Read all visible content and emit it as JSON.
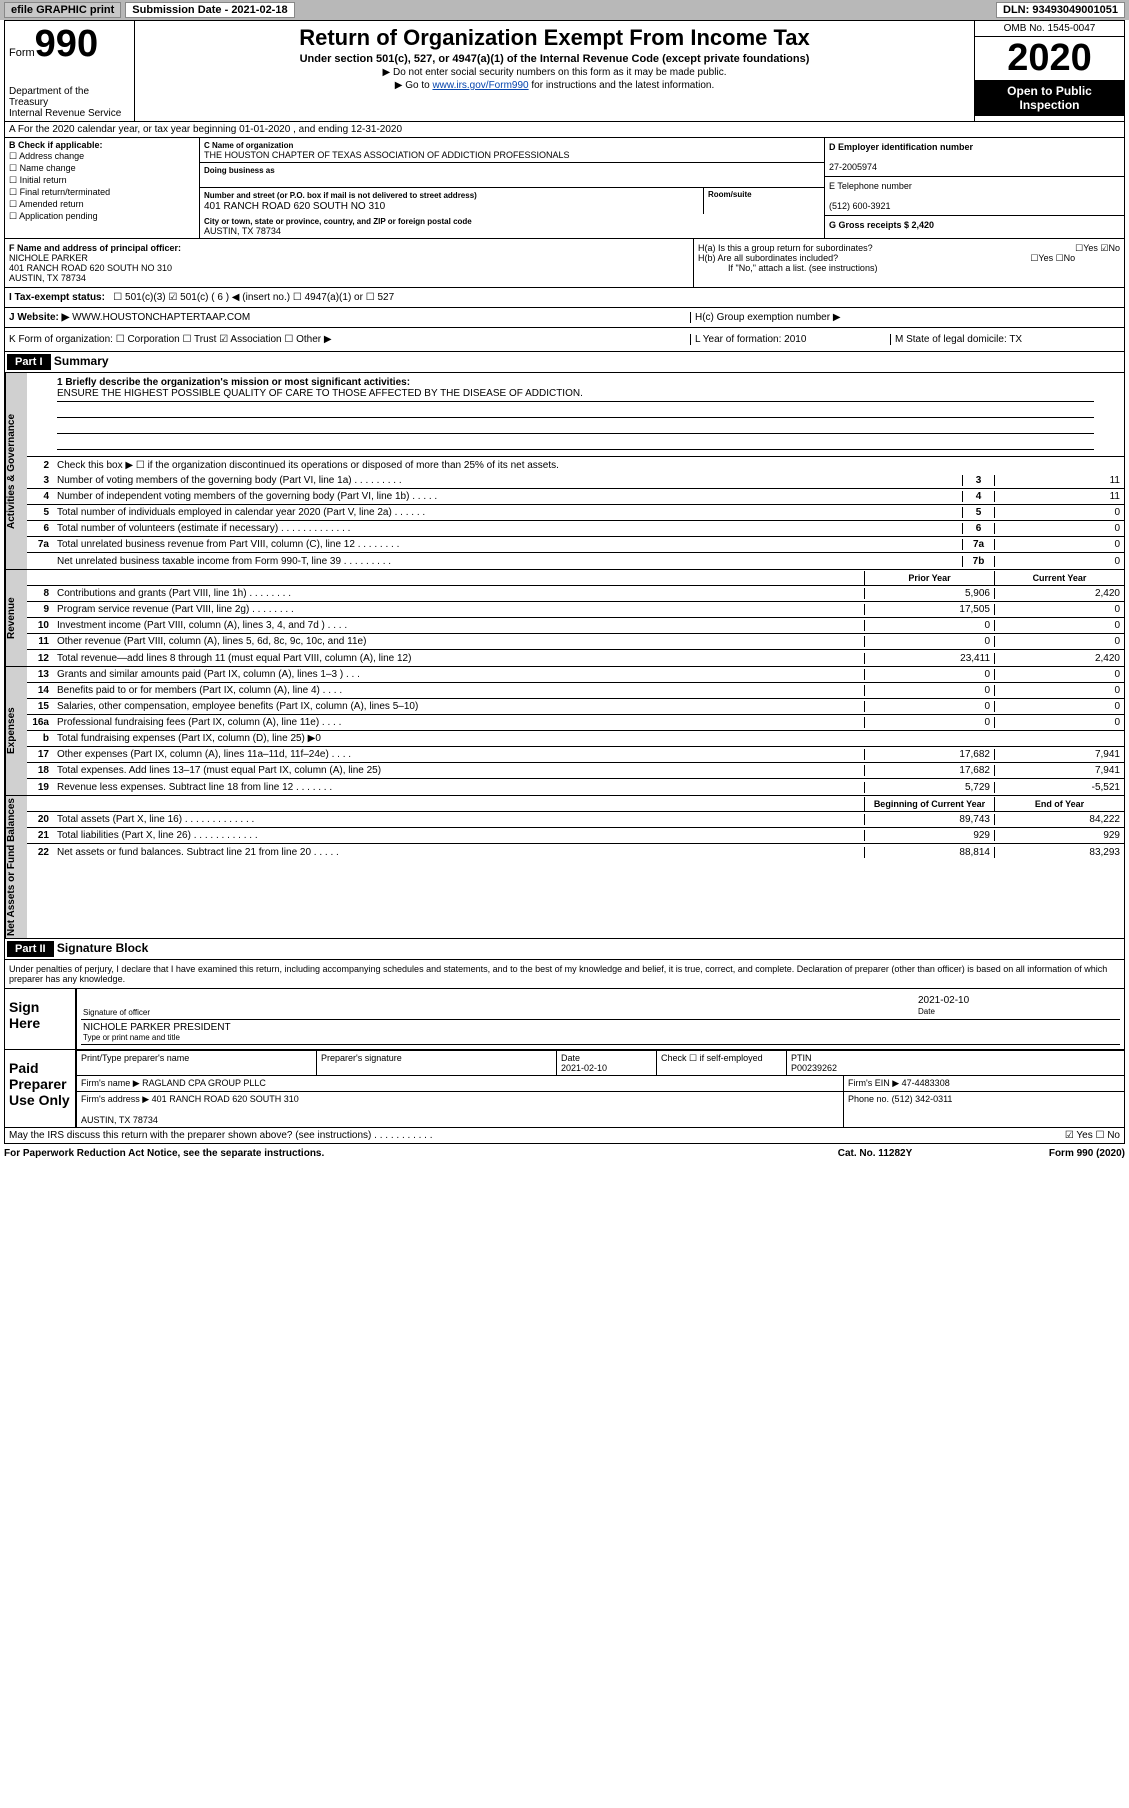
{
  "topbar": {
    "efile": "efile GRAPHIC print",
    "submission_label": "Submission Date - 2021-02-18",
    "dln": "DLN: 93493049001051"
  },
  "header": {
    "form_prefix": "Form",
    "form_number": "990",
    "dept": "Department of the Treasury",
    "irs": "Internal Revenue Service",
    "title": "Return of Organization Exempt From Income Tax",
    "subtitle": "Under section 501(c), 527, or 4947(a)(1) of the Internal Revenue Code (except private foundations)",
    "note1": "▶ Do not enter social security numbers on this form as it may be made public.",
    "note2_pre": "▶ Go to ",
    "note2_link": "www.irs.gov/Form990",
    "note2_post": " for instructions and the latest information.",
    "omb": "OMB No. 1545-0047",
    "year": "2020",
    "open": "Open to Public Inspection"
  },
  "period": "A For the 2020 calendar year, or tax year beginning 01-01-2020    , and ending 12-31-2020",
  "checkB": {
    "title": "B Check if applicable:",
    "items": [
      "Address change",
      "Name change",
      "Initial return",
      "Final return/terminated",
      "Amended return",
      "Application pending"
    ]
  },
  "orgC": {
    "name_lbl": "C Name of organization",
    "name": "THE HOUSTON CHAPTER OF TEXAS ASSOCIATION OF ADDICTION PROFESSIONALS",
    "dba_lbl": "Doing business as",
    "street_lbl": "Number and street (or P.O. box if mail is not delivered to street address)",
    "street": "401 RANCH ROAD 620 SOUTH NO 310",
    "room_lbl": "Room/suite",
    "city_lbl": "City or town, state or province, country, and ZIP or foreign postal code",
    "city": "AUSTIN, TX  78734"
  },
  "right": {
    "ein_lbl": "D Employer identification number",
    "ein": "27-2005974",
    "phone_lbl": "E Telephone number",
    "phone": "(512) 600-3921",
    "gross_lbl": "G Gross receipts $ 2,420"
  },
  "F": {
    "lbl": "F Name and address of principal officer:",
    "name": "NICHOLE PARKER",
    "addr1": "401 RANCH ROAD 620 SOUTH NO 310",
    "addr2": "AUSTIN, TX  78734"
  },
  "H": {
    "a": "H(a)  Is this a group return for subordinates?",
    "a_yn": "☐Yes ☑No",
    "b": "H(b)  Are all subordinates included?",
    "b_yn": "☐Yes ☐No",
    "b_note": "If \"No,\" attach a list. (see instructions)",
    "c": "H(c)  Group exemption number ▶"
  },
  "I": {
    "lbl": "I    Tax-exempt status:",
    "opts": "☐ 501(c)(3)   ☑ 501(c) ( 6 ) ◀ (insert no.)   ☐ 4947(a)(1) or  ☐ 527"
  },
  "J": {
    "lbl": "J   Website: ▶",
    "url": " WWW.HOUSTONCHAPTERTAAP.COM"
  },
  "K": {
    "lbl": "K Form of organization:  ☐ Corporation  ☐ Trust  ☑ Association  ☐ Other ▶",
    "L": "L Year of formation: 2010",
    "M": "M State of legal domicile: TX"
  },
  "part1": {
    "hdr": "Part I",
    "title": "Summary"
  },
  "summary": {
    "line1_lbl": "1  Briefly describe the organization's mission or most significant activities:",
    "mission": "ENSURE THE HIGHEST POSSIBLE QUALITY OF CARE TO THOSE AFFECTED BY THE DISEASE OF ADDICTION.",
    "line2": "Check this box ▶ ☐  if the organization discontinued its operations or disposed of more than 25% of its net assets.",
    "governance": [
      {
        "n": "3",
        "d": "Number of voting members of the governing body (Part VI, line 1a)  .  .  .  .  .  .  .  .  .",
        "b": "3",
        "v": "11"
      },
      {
        "n": "4",
        "d": "Number of independent voting members of the governing body (Part VI, line 1b)  .  .  .  .  .",
        "b": "4",
        "v": "11"
      },
      {
        "n": "5",
        "d": "Total number of individuals employed in calendar year 2020 (Part V, line 2a)  .  .  .  .  .  .",
        "b": "5",
        "v": "0"
      },
      {
        "n": "6",
        "d": "Total number of volunteers (estimate if necessary)  .  .  .  .  .  .  .  .  .  .  .  .  .",
        "b": "6",
        "v": "0"
      },
      {
        "n": "7a",
        "d": "Total unrelated business revenue from Part VIII, column (C), line 12  .  .  .  .  .  .  .  .",
        "b": "7a",
        "v": "0"
      },
      {
        "n": "",
        "d": "Net unrelated business taxable income from Form 990-T, line 39  .  .  .  .  .  .  .  .  .",
        "b": "7b",
        "v": "0"
      }
    ],
    "rev_hdr": {
      "c1": "Prior Year",
      "c2": "Current Year"
    },
    "revenue": [
      {
        "n": "8",
        "d": "Contributions and grants (Part VIII, line 1h)  .  .  .  .  .  .  .  .",
        "v1": "5,906",
        "v2": "2,420"
      },
      {
        "n": "9",
        "d": "Program service revenue (Part VIII, line 2g)  .  .  .  .  .  .  .  .",
        "v1": "17,505",
        "v2": "0"
      },
      {
        "n": "10",
        "d": "Investment income (Part VIII, column (A), lines 3, 4, and 7d )  .  .  .  .",
        "v1": "0",
        "v2": "0"
      },
      {
        "n": "11",
        "d": "Other revenue (Part VIII, column (A), lines 5, 6d, 8c, 9c, 10c, and 11e)",
        "v1": "0",
        "v2": "0"
      },
      {
        "n": "12",
        "d": "Total revenue—add lines 8 through 11 (must equal Part VIII, column (A), line 12)",
        "v1": "23,411",
        "v2": "2,420"
      }
    ],
    "expenses": [
      {
        "n": "13",
        "d": "Grants and similar amounts paid (Part IX, column (A), lines 1–3 )  .  .  .",
        "v1": "0",
        "v2": "0"
      },
      {
        "n": "14",
        "d": "Benefits paid to or for members (Part IX, column (A), line 4)  .  .  .  .",
        "v1": "0",
        "v2": "0"
      },
      {
        "n": "15",
        "d": "Salaries, other compensation, employee benefits (Part IX, column (A), lines 5–10)",
        "v1": "0",
        "v2": "0"
      },
      {
        "n": "16a",
        "d": "Professional fundraising fees (Part IX, column (A), line 11e)  .  .  .  .",
        "v1": "0",
        "v2": "0"
      },
      {
        "n": "b",
        "d": "Total fundraising expenses (Part IX, column (D), line 25) ▶0",
        "v1": "",
        "v2": ""
      },
      {
        "n": "17",
        "d": "Other expenses (Part IX, column (A), lines 11a–11d, 11f–24e)  .  .  .  .",
        "v1": "17,682",
        "v2": "7,941"
      },
      {
        "n": "18",
        "d": "Total expenses. Add lines 13–17 (must equal Part IX, column (A), line 25)",
        "v1": "17,682",
        "v2": "7,941"
      },
      {
        "n": "19",
        "d": "Revenue less expenses. Subtract line 18 from line 12  .  .  .  .  .  .  .",
        "v1": "5,729",
        "v2": "-5,521"
      }
    ],
    "net_hdr": {
      "c1": "Beginning of Current Year",
      "c2": "End of Year"
    },
    "net": [
      {
        "n": "20",
        "d": "Total assets (Part X, line 16)  .  .  .  .  .  .  .  .  .  .  .  .  .",
        "v1": "89,743",
        "v2": "84,222"
      },
      {
        "n": "21",
        "d": "Total liabilities (Part X, line 26)  .  .  .  .  .  .  .  .  .  .  .  .",
        "v1": "929",
        "v2": "929"
      },
      {
        "n": "22",
        "d": "Net assets or fund balances. Subtract line 21 from line 20  .  .  .  .  .",
        "v1": "88,814",
        "v2": "83,293"
      }
    ]
  },
  "sidelabels": {
    "gov": "Activities & Governance",
    "rev": "Revenue",
    "exp": "Expenses",
    "net": "Net Assets or Fund Balances"
  },
  "part2": {
    "hdr": "Part II",
    "title": "Signature Block"
  },
  "sig": {
    "perjury": "Under penalties of perjury, I declare that I have examined this return, including accompanying schedules and statements, and to the best of my knowledge and belief, it is true, correct, and complete. Declaration of preparer (other than officer) is based on all information of which preparer has any knowledge.",
    "sign_here": "Sign Here",
    "sig_officer": "Signature of officer",
    "date": "2021-02-10",
    "date_lbl": "Date",
    "name": "NICHOLE PARKER  PRESIDENT",
    "name_lbl": "Type or print name and title",
    "paid": "Paid Preparer Use Only",
    "prep_name_lbl": "Print/Type preparer's name",
    "prep_sig_lbl": "Preparer's signature",
    "prep_date_lbl": "Date",
    "prep_date": "2021-02-10",
    "check_lbl": "Check ☐ if self-employed",
    "ptin_lbl": "PTIN",
    "ptin": "P00239262",
    "firm_name_lbl": "Firm's name    ▶",
    "firm_name": "RAGLAND CPA GROUP PLLC",
    "firm_ein_lbl": "Firm's EIN ▶",
    "firm_ein": "47-4483308",
    "firm_addr_lbl": "Firm's address ▶",
    "firm_addr": "401 RANCH ROAD 620 SOUTH 310",
    "firm_city": "AUSTIN, TX  78734",
    "firm_phone_lbl": "Phone no.",
    "firm_phone": "(512) 342-0311",
    "may_discuss": "May the IRS discuss this return with the preparer shown above? (see instructions)  .  .  .  .  .  .  .  .  .  .  .",
    "may_yn": "☑ Yes  ☐ No"
  },
  "footer": {
    "f1": "For Paperwork Reduction Act Notice, see the separate instructions.",
    "f2": "Cat. No. 11282Y",
    "f3": "Form 990 (2020)"
  }
}
